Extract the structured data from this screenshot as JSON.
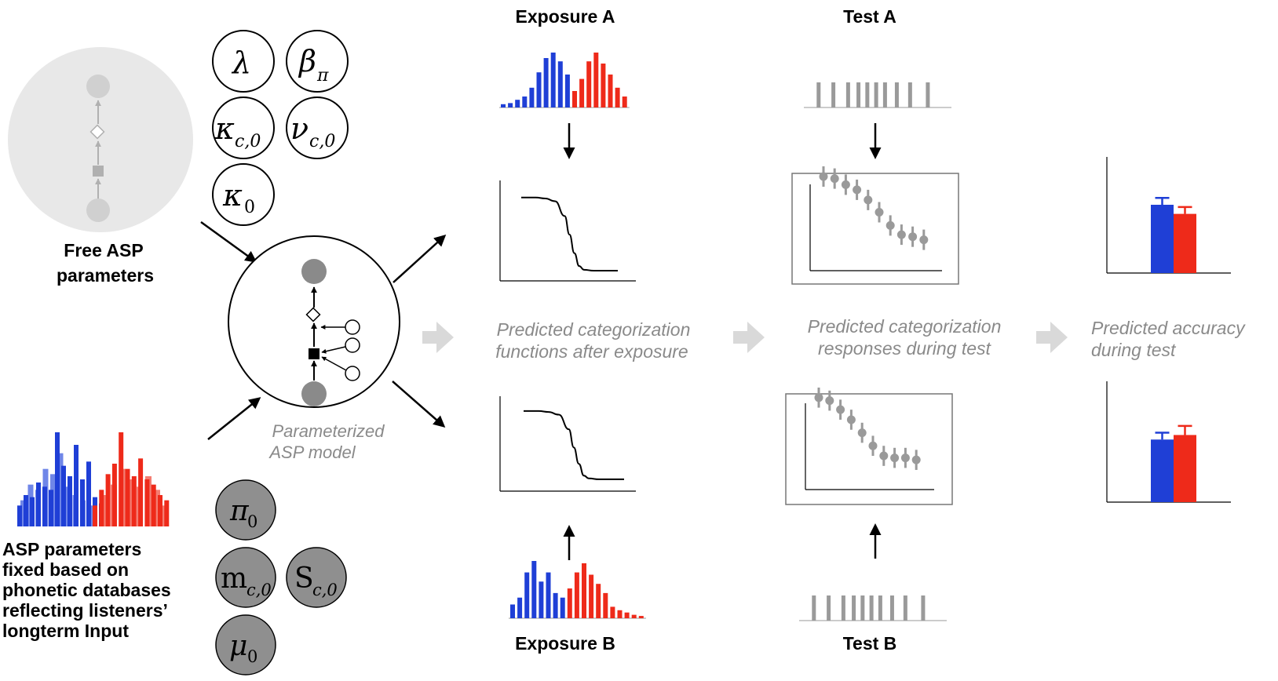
{
  "labels": {
    "exposure_a": "Exposure A",
    "exposure_b": "Exposure B",
    "test_a": "Test A",
    "test_b": "Test B",
    "free_params_line1": "Free ASP",
    "free_params_line2": "parameters",
    "fixed_params_lines": [
      "ASP parameters",
      "fixed based on",
      "phonetic databases",
      "reflecting listeners’",
      "longterm Input"
    ],
    "model_line1": "Parameterized",
    "model_line2": "ASP model",
    "pred_cat_fn_line1": "Predicted categorization",
    "pred_cat_fn_line2": "functions after exposure",
    "pred_cat_resp_line1": "Predicted categorization",
    "pred_cat_resp_line2": "responses during test",
    "pred_acc_line1": "Predicted accuracy",
    "pred_acc_line2": "during test"
  },
  "free_params": [
    {
      "base": "λ",
      "sub": ""
    },
    {
      "base": "β",
      "sub": "π"
    },
    {
      "base": "κ",
      "sub": "c,0"
    },
    {
      "base": "ν",
      "sub": "c,0"
    },
    {
      "base": "κ",
      "sub": "0"
    }
  ],
  "fixed_params": [
    {
      "base": "π",
      "sub": "0",
      "italic": true
    },
    {
      "base": "m",
      "sub": "c,0",
      "italic": false
    },
    {
      "base": "S",
      "sub": "c,0",
      "italic": false
    },
    {
      "base": "μ",
      "sub": "0",
      "italic": true
    }
  ],
  "colors": {
    "blue": "#1f3fd6",
    "red": "#ee2a1a",
    "light_blue": "#6f86e8",
    "light_red": "#f47d72",
    "gray": "#9a9a9a",
    "light_gray_arrow": "#d9d9d9",
    "circle_bg": "#e8e8e8",
    "fixed_param_fill": "#8f8f8f"
  },
  "chart_data": [
    {
      "type": "bar",
      "name": "exposure_a_distribution",
      "series": [
        {
          "name": "",
          "color": "blue",
          "values": [
            3,
            4,
            7,
            10,
            18,
            32,
            45,
            50,
            42,
            30
          ]
        },
        {
          "name": "",
          "color": "red",
          "values": [
            15,
            26,
            42,
            50,
            40,
            30,
            18,
            10
          ]
        }
      ]
    },
    {
      "type": "bar",
      "name": "exposure_b_distribution",
      "series": [
        {
          "name": "",
          "color": "blue",
          "values": [
            12,
            18,
            40,
            50,
            32,
            40,
            22,
            18
          ]
        },
        {
          "name": "",
          "color": "red",
          "values": [
            26,
            40,
            48,
            38,
            30,
            22,
            10,
            7,
            5,
            3,
            2
          ]
        }
      ]
    },
    {
      "type": "bar",
      "name": "longterm_input_distribution",
      "series": [
        {
          "name": "",
          "color": "blue",
          "values": [
            20,
            30,
            28,
            42,
            38,
            35,
            90,
            58,
            48,
            78,
            45,
            62,
            28,
            22
          ]
        },
        {
          "name": "",
          "color": "light_blue",
          "values": [
            25,
            40,
            35,
            55,
            50,
            70,
            38,
            30,
            25,
            20
          ]
        },
        {
          "name": "",
          "color": "red",
          "values": [
            20,
            35,
            50,
            60,
            90,
            55,
            48,
            65,
            45,
            40,
            30,
            25
          ]
        },
        {
          "name": "",
          "color": "light_red",
          "values": [
            30,
            40,
            55,
            45,
            38,
            48,
            35,
            20
          ]
        }
      ]
    },
    {
      "type": "line",
      "name": "categorization_function_a",
      "x": [
        0,
        0.05,
        0.15,
        0.25,
        0.35,
        0.45,
        0.5,
        0.55,
        0.6,
        0.65,
        0.75,
        0.85,
        1.0
      ],
      "y": [
        0.9,
        0.9,
        0.9,
        0.89,
        0.86,
        0.7,
        0.5,
        0.3,
        0.16,
        0.12,
        0.11,
        0.11,
        0.11
      ]
    },
    {
      "type": "line",
      "name": "categorization_function_b",
      "x": [
        0,
        0.05,
        0.15,
        0.25,
        0.35,
        0.45,
        0.5,
        0.55,
        0.6,
        0.65,
        0.75,
        0.85,
        1.0
      ],
      "y": [
        0.88,
        0.88,
        0.88,
        0.87,
        0.84,
        0.68,
        0.48,
        0.3,
        0.17,
        0.14,
        0.13,
        0.13,
        0.13
      ]
    },
    {
      "type": "scatter",
      "name": "test_a_responses",
      "y": [
        0.9,
        0.88,
        0.82,
        0.77,
        0.67,
        0.55,
        0.42,
        0.33,
        0.31,
        0.28
      ],
      "err": [
        0.1,
        0.1,
        0.1,
        0.1,
        0.1,
        0.1,
        0.1,
        0.1,
        0.1,
        0.1
      ]
    },
    {
      "type": "scatter",
      "name": "test_b_responses",
      "y": [
        0.9,
        0.87,
        0.78,
        0.68,
        0.55,
        0.42,
        0.32,
        0.3,
        0.3,
        0.28
      ],
      "err": [
        0.1,
        0.1,
        0.1,
        0.1,
        0.1,
        0.1,
        0.1,
        0.1,
        0.1,
        0.1
      ]
    },
    {
      "type": "bar",
      "name": "accuracy_a",
      "categories": [
        "blue",
        "red"
      ],
      "values": [
        0.6,
        0.52
      ],
      "err": [
        0.06,
        0.06
      ]
    },
    {
      "type": "bar",
      "name": "accuracy_b",
      "categories": [
        "blue",
        "red"
      ],
      "values": [
        0.55,
        0.59
      ],
      "err": [
        0.06,
        0.08
      ]
    }
  ],
  "test_a_ticks": [
    0.1,
    0.2,
    0.3,
    0.37,
    0.43,
    0.49,
    0.55,
    0.63,
    0.72,
    0.84
  ],
  "test_b_ticks": [
    0.1,
    0.2,
    0.3,
    0.37,
    0.43,
    0.49,
    0.55,
    0.63,
    0.72,
    0.84
  ]
}
